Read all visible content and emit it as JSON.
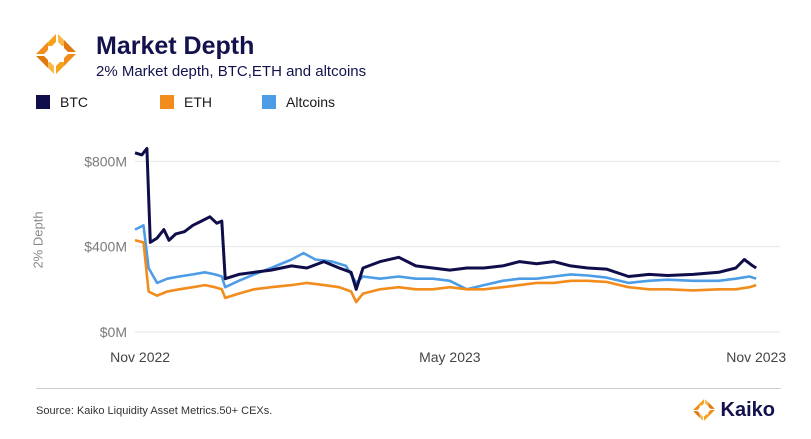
{
  "header": {
    "title": "Market Depth",
    "subtitle": "2% Market depth, BTC,ETH and altcoins"
  },
  "footer": {
    "source": "Source: Kaiko Liquidity Asset Metrics.50+ CEXs.",
    "brand": "Kaiko"
  },
  "colors": {
    "btc": "#0f0e4a",
    "eth": "#f28c1c",
    "altcoins": "#4d9de6",
    "brand_orange": "#f7a21b"
  },
  "chart_data": {
    "type": "line",
    "title": "Market Depth",
    "subtitle": "2% Market depth, BTC,ETH and altcoins",
    "xlabel": "",
    "ylabel": "2% Depth",
    "x_ticks": [
      "Nov 2022",
      "May 2023",
      "Nov 2023"
    ],
    "y_ticks": [
      "$0M",
      "$400M",
      "$800M"
    ],
    "y_tick_values": [
      0,
      400,
      800
    ],
    "ylim": [
      0,
      900
    ],
    "xlim": [
      "2022-11-01",
      "2023-11-15"
    ],
    "grid": "horizontal",
    "legend_position": "top-left",
    "series": [
      {
        "name": "BTC",
        "color": "#0f0e4a",
        "points": [
          [
            "2022-11-01",
            840
          ],
          [
            "2022-11-05",
            830
          ],
          [
            "2022-11-08",
            860
          ],
          [
            "2022-11-10",
            420
          ],
          [
            "2022-11-14",
            440
          ],
          [
            "2022-11-18",
            480
          ],
          [
            "2022-11-21",
            430
          ],
          [
            "2022-11-25",
            460
          ],
          [
            "2022-11-30",
            470
          ],
          [
            "2022-12-05",
            500
          ],
          [
            "2022-12-10",
            520
          ],
          [
            "2022-12-15",
            540
          ],
          [
            "2022-12-19",
            510
          ],
          [
            "2022-12-22",
            520
          ],
          [
            "2022-12-24",
            250
          ],
          [
            "2023-01-01",
            270
          ],
          [
            "2023-01-10",
            280
          ],
          [
            "2023-01-20",
            290
          ],
          [
            "2023-02-01",
            310
          ],
          [
            "2023-02-10",
            300
          ],
          [
            "2023-02-20",
            330
          ],
          [
            "2023-03-01",
            300
          ],
          [
            "2023-03-08",
            280
          ],
          [
            "2023-03-11",
            200
          ],
          [
            "2023-03-15",
            300
          ],
          [
            "2023-03-25",
            330
          ],
          [
            "2023-04-05",
            350
          ],
          [
            "2023-04-15",
            310
          ],
          [
            "2023-04-25",
            300
          ],
          [
            "2023-05-05",
            290
          ],
          [
            "2023-05-15",
            300
          ],
          [
            "2023-05-25",
            300
          ],
          [
            "2023-06-05",
            310
          ],
          [
            "2023-06-15",
            330
          ],
          [
            "2023-06-25",
            320
          ],
          [
            "2023-07-05",
            330
          ],
          [
            "2023-07-15",
            310
          ],
          [
            "2023-07-25",
            300
          ],
          [
            "2023-08-05",
            295
          ],
          [
            "2023-08-18",
            260
          ],
          [
            "2023-08-30",
            270
          ],
          [
            "2023-09-10",
            265
          ],
          [
            "2023-09-25",
            270
          ],
          [
            "2023-10-10",
            280
          ],
          [
            "2023-10-20",
            300
          ],
          [
            "2023-10-25",
            340
          ],
          [
            "2023-10-30",
            310
          ],
          [
            "2023-11-01",
            300
          ]
        ]
      },
      {
        "name": "ETH",
        "color": "#f28c1c",
        "points": [
          [
            "2022-11-01",
            430
          ],
          [
            "2022-11-06",
            420
          ],
          [
            "2022-11-09",
            190
          ],
          [
            "2022-11-14",
            170
          ],
          [
            "2022-11-20",
            190
          ],
          [
            "2022-11-27",
            200
          ],
          [
            "2022-12-05",
            210
          ],
          [
            "2022-12-12",
            220
          ],
          [
            "2022-12-18",
            210
          ],
          [
            "2022-12-22",
            200
          ],
          [
            "2022-12-24",
            160
          ],
          [
            "2023-01-01",
            180
          ],
          [
            "2023-01-10",
            200
          ],
          [
            "2023-01-20",
            210
          ],
          [
            "2023-02-01",
            220
          ],
          [
            "2023-02-10",
            230
          ],
          [
            "2023-02-20",
            220
          ],
          [
            "2023-03-01",
            210
          ],
          [
            "2023-03-08",
            190
          ],
          [
            "2023-03-11",
            140
          ],
          [
            "2023-03-15",
            180
          ],
          [
            "2023-03-25",
            200
          ],
          [
            "2023-04-05",
            210
          ],
          [
            "2023-04-15",
            200
          ],
          [
            "2023-04-25",
            200
          ],
          [
            "2023-05-05",
            210
          ],
          [
            "2023-05-15",
            200
          ],
          [
            "2023-05-25",
            200
          ],
          [
            "2023-06-05",
            210
          ],
          [
            "2023-06-15",
            220
          ],
          [
            "2023-06-25",
            230
          ],
          [
            "2023-07-05",
            230
          ],
          [
            "2023-07-15",
            240
          ],
          [
            "2023-07-25",
            240
          ],
          [
            "2023-08-05",
            235
          ],
          [
            "2023-08-18",
            210
          ],
          [
            "2023-08-30",
            200
          ],
          [
            "2023-09-10",
            200
          ],
          [
            "2023-09-25",
            195
          ],
          [
            "2023-10-10",
            200
          ],
          [
            "2023-10-20",
            200
          ],
          [
            "2023-10-28",
            210
          ],
          [
            "2023-11-01",
            220
          ]
        ]
      },
      {
        "name": "Altcoins",
        "color": "#4d9de6",
        "points": [
          [
            "2022-11-01",
            480
          ],
          [
            "2022-11-06",
            500
          ],
          [
            "2022-11-09",
            300
          ],
          [
            "2022-11-14",
            230
          ],
          [
            "2022-11-20",
            250
          ],
          [
            "2022-11-27",
            260
          ],
          [
            "2022-12-05",
            270
          ],
          [
            "2022-12-12",
            280
          ],
          [
            "2022-12-18",
            270
          ],
          [
            "2022-12-22",
            260
          ],
          [
            "2022-12-24",
            210
          ],
          [
            "2023-01-01",
            240
          ],
          [
            "2023-01-10",
            270
          ],
          [
            "2023-01-20",
            300
          ],
          [
            "2023-02-01",
            340
          ],
          [
            "2023-02-08",
            370
          ],
          [
            "2023-02-15",
            340
          ],
          [
            "2023-02-25",
            330
          ],
          [
            "2023-03-05",
            310
          ],
          [
            "2023-03-11",
            230
          ],
          [
            "2023-03-15",
            260
          ],
          [
            "2023-03-25",
            250
          ],
          [
            "2023-04-05",
            260
          ],
          [
            "2023-04-15",
            250
          ],
          [
            "2023-04-25",
            250
          ],
          [
            "2023-05-05",
            240
          ],
          [
            "2023-05-15",
            200
          ],
          [
            "2023-05-25",
            220
          ],
          [
            "2023-06-05",
            240
          ],
          [
            "2023-06-15",
            250
          ],
          [
            "2023-06-25",
            250
          ],
          [
            "2023-07-05",
            260
          ],
          [
            "2023-07-15",
            270
          ],
          [
            "2023-07-25",
            265
          ],
          [
            "2023-08-05",
            255
          ],
          [
            "2023-08-18",
            230
          ],
          [
            "2023-08-30",
            240
          ],
          [
            "2023-09-10",
            245
          ],
          [
            "2023-09-25",
            240
          ],
          [
            "2023-10-10",
            240
          ],
          [
            "2023-10-20",
            250
          ],
          [
            "2023-10-28",
            260
          ],
          [
            "2023-11-01",
            250
          ]
        ]
      }
    ]
  }
}
